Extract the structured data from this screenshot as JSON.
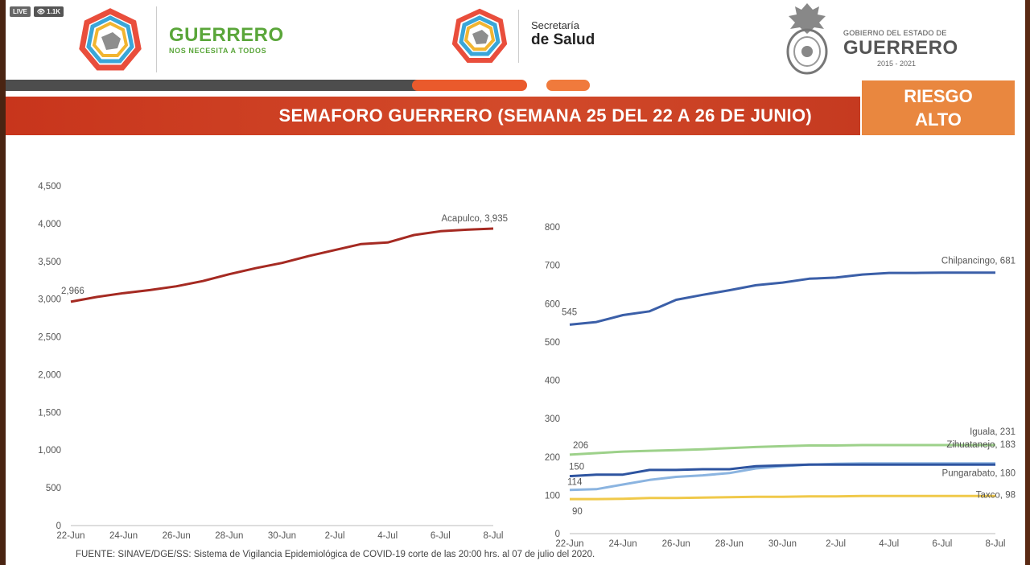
{
  "badges": {
    "live": "LIVE",
    "views": "1.1K"
  },
  "logo_left": {
    "title": "GUERRERO",
    "subtitle": "NOS NECESITA A TODOS"
  },
  "logo_center": {
    "line1": "Secretaría",
    "line2": "de Salud"
  },
  "logo_right": {
    "line1": "GOBIERNO DEL ESTADO DE",
    "line2": "GUERRERO",
    "line3": "2015 - 2021"
  },
  "banner": {
    "title": "SEMAFORO GUERRERO (SEMANA 25 DEL 22 A 26 DE JUNIO)",
    "risk_line1": "RIESGO",
    "risk_line2": "ALTO"
  },
  "colors": {
    "acapulco": "#a52a22",
    "chilpancingo": "#3b5fa8",
    "iguala": "#9dd18a",
    "zihuatanejo": "#8bb4e0",
    "pungarabato": "#2e54a0",
    "taxco": "#f0c94a"
  },
  "chart_data": [
    {
      "type": "line",
      "x": [
        "22-Jun",
        "23-Jun",
        "24-Jun",
        "25-Jun",
        "26-Jun",
        "27-Jun",
        "28-Jun",
        "29-Jun",
        "30-Jun",
        "1-Jul",
        "2-Jul",
        "3-Jul",
        "4-Jul",
        "5-Jul",
        "6-Jul",
        "7-Jul",
        "8-Jul"
      ],
      "tick_labels": [
        "22-Jun",
        "24-Jun",
        "26-Jun",
        "28-Jun",
        "30-Jun",
        "2-Jul",
        "4-Jul",
        "6-Jul",
        "8-Jul"
      ],
      "yticks": [
        "0",
        "500",
        "1,000",
        "1,500",
        "2,000",
        "2,500",
        "3,000",
        "3,500",
        "4,000",
        "4,500"
      ],
      "ylim": [
        0,
        4500
      ],
      "series": [
        {
          "name": "Acapulco",
          "color": "#a52a22",
          "values": [
            2966,
            3030,
            3080,
            3120,
            3170,
            3240,
            3330,
            3410,
            3480,
            3570,
            3650,
            3730,
            3750,
            3850,
            3900,
            3920,
            3935
          ],
          "start_label": "2,966",
          "end_label": "Acapulco, 3,935"
        }
      ]
    },
    {
      "type": "line",
      "x": [
        "22-Jun",
        "23-Jun",
        "24-Jun",
        "25-Jun",
        "26-Jun",
        "27-Jun",
        "28-Jun",
        "29-Jun",
        "30-Jun",
        "1-Jul",
        "2-Jul",
        "3-Jul",
        "4-Jul",
        "5-Jul",
        "6-Jul",
        "7-Jul",
        "8-Jul"
      ],
      "tick_labels": [
        "22-Jun",
        "24-Jun",
        "26-Jun",
        "28-Jun",
        "30-Jun",
        "2-Jul",
        "4-Jul",
        "6-Jul",
        "8-Jul"
      ],
      "yticks": [
        "0",
        "100",
        "200",
        "300",
        "400",
        "500",
        "600",
        "700",
        "800"
      ],
      "ylim": [
        0,
        800
      ],
      "series": [
        {
          "name": "Chilpancingo",
          "color": "#3b5fa8",
          "values": [
            545,
            552,
            570,
            580,
            610,
            623,
            635,
            648,
            655,
            665,
            668,
            676,
            680,
            680,
            681,
            681,
            681
          ],
          "start_label": "545",
          "end_label": "Chilpancingo, 681"
        },
        {
          "name": "Iguala",
          "color": "#9dd18a",
          "values": [
            206,
            210,
            214,
            216,
            218,
            220,
            223,
            226,
            228,
            230,
            230,
            231,
            231,
            231,
            231,
            231,
            231
          ],
          "start_label": "206",
          "end_label": "Iguala, 231"
        },
        {
          "name": "Zihuatanejo",
          "color": "#8bb4e0",
          "values": [
            114,
            116,
            128,
            140,
            148,
            152,
            158,
            170,
            176,
            180,
            182,
            183,
            183,
            183,
            183,
            183,
            183
          ],
          "start_label": "114",
          "end_label": "Zihuatanejo, 183"
        },
        {
          "name": "Pungarabato",
          "color": "#2e54a0",
          "values": [
            150,
            154,
            154,
            166,
            166,
            168,
            168,
            176,
            178,
            180,
            180,
            180,
            180,
            180,
            180,
            180,
            180
          ],
          "start_label": "150",
          "end_label": "Pungarabato, 180"
        },
        {
          "name": "Taxco",
          "color": "#f0c94a",
          "values": [
            90,
            90,
            91,
            93,
            93,
            94,
            95,
            96,
            96,
            97,
            97,
            98,
            98,
            98,
            98,
            98,
            98
          ],
          "start_label": "90",
          "end_label": "Taxco, 98"
        }
      ]
    }
  ],
  "source": "FUENTE: SINAVE/DGE/SS: Sistema de Vigilancia Epidemiológica de COVID-19 corte de las 20:00 hrs. al 07 de julio del 2020."
}
